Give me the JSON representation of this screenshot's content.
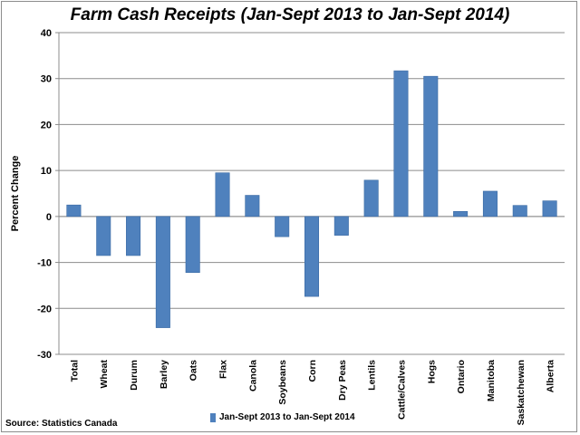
{
  "title": "Farm Cash Receipts (Jan-Sept 2013 to Jan-Sept 2014)",
  "source": "Source: Statistics Canada",
  "legend": {
    "label": "Jan-Sept 2013 to Jan-Sept 2014",
    "color": "#4f81bd"
  },
  "chart_data": {
    "type": "bar",
    "title": "Farm Cash Receipts (Jan-Sept 2013 to Jan-Sept 2014)",
    "xlabel": "",
    "ylabel": "Percent Change",
    "ylim": [
      -30,
      40
    ],
    "yticks": [
      40,
      30,
      20,
      10,
      0,
      -10,
      -20,
      -30
    ],
    "grid": true,
    "legend_position": "bottom",
    "categories": [
      "Total",
      "Wheat",
      "Durum",
      "Barley",
      "Oats",
      "Flax",
      "Canola",
      "Soybeans",
      "Corn",
      "Dry Peas",
      "Lentils",
      "Cattle/Calves",
      "Hogs",
      "Ontario",
      "Manitoba",
      "Saskatchewan",
      "Alberta"
    ],
    "series": [
      {
        "name": "Jan-Sept 2013 to Jan-Sept 2014",
        "color": "#4f81bd",
        "values": [
          2.5,
          -8.5,
          -8.5,
          -24.2,
          -12.2,
          9.5,
          4.6,
          -4.4,
          -17.4,
          -4.1,
          7.9,
          31.7,
          30.5,
          1.1,
          5.5,
          2.4,
          3.4
        ]
      }
    ]
  }
}
